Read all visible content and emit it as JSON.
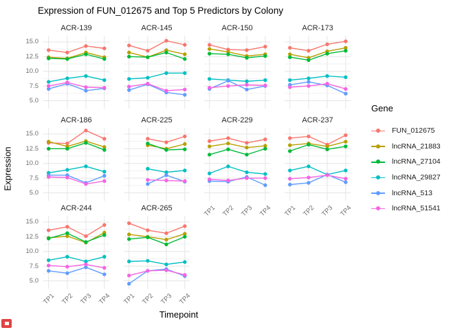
{
  "page": {
    "title": "Expression of FUN_012675 and Top 5 Predictors by Colony"
  },
  "x_axis": {
    "title": "Timepoint",
    "tick_labels": [
      "TP1",
      "TP2",
      "TP3",
      "TP4"
    ]
  },
  "y_axis": {
    "title": "Expression",
    "tick_labels": [
      "15.0",
      "12.5",
      "10.0",
      "7.5",
      "5.0"
    ],
    "tick_values": [
      15,
      12.5,
      10,
      7.5,
      5
    ]
  },
  "legend": {
    "title": "Gene",
    "entries": [
      {
        "label": "FUN_012675",
        "color": "#F8766D"
      },
      {
        "label": "lncRNA_21883",
        "color": "#B79F00"
      },
      {
        "label": "lncRNA_27104",
        "color": "#00BA38"
      },
      {
        "label": "lncRNA_29827",
        "color": "#00BFC4"
      },
      {
        "label": "lncRNA_513",
        "color": "#619CFF"
      },
      {
        "label": "lncRNA_51541",
        "color": "#F564E3"
      }
    ]
  },
  "chart_data": {
    "type": "line",
    "title": "Expression of FUN_012675 and Top 5 Predictors by Colony",
    "xlabel": "Timepoint",
    "ylabel": "Expression",
    "x_categories": [
      "TP1",
      "TP2",
      "TP3",
      "TP4"
    ],
    "ylim": [
      3.65,
      16.05
    ],
    "y_ticks": [
      5,
      7.5,
      10,
      12.5,
      15
    ],
    "y_minor_ticks": [
      6.25,
      8.75,
      11.25,
      13.75
    ],
    "grid": true,
    "legend_position": "right",
    "series_names": [
      "FUN_012675",
      "lncRNA_21883",
      "lncRNA_27104",
      "lncRNA_29827",
      "lncRNA_513",
      "lncRNA_51541"
    ],
    "series_colors": {
      "FUN_012675": "#F8766D",
      "lncRNA_21883": "#B79F00",
      "lncRNA_27104": "#00BA38",
      "lncRNA_29827": "#00BFC4",
      "lncRNA_513": "#619CFF",
      "lncRNA_51541": "#F564E3"
    },
    "facets": [
      {
        "name": "ACR-139",
        "series": {
          "FUN_012675": [
            13.6,
            13.2,
            14.3,
            13.9
          ],
          "lncRNA_21883": [
            12.4,
            12.2,
            13.2,
            12.4
          ],
          "lncRNA_27104": [
            12.2,
            12.1,
            12.9,
            12.1
          ],
          "lncRNA_29827": [
            8.2,
            8.8,
            9.2,
            8.5
          ],
          "lncRNA_513": [
            7.0,
            7.9,
            6.7,
            7.1
          ],
          "lncRNA_51541": [
            7.5,
            8.1,
            7.3,
            7.2
          ]
        }
      },
      {
        "name": "ACR-145",
        "series": {
          "FUN_012675": [
            14.4,
            13.5,
            15.2,
            14.5
          ],
          "lncRNA_21883": [
            13.2,
            12.4,
            13.6,
            12.9
          ],
          "lncRNA_27104": [
            12.5,
            12.4,
            13.2,
            12.1
          ],
          "lncRNA_29827": [
            8.7,
            8.9,
            9.7,
            9.7
          ],
          "lncRNA_513": [
            6.8,
            7.8,
            6.4,
            6.0
          ],
          "lncRNA_51541": [
            7.4,
            7.9,
            6.7,
            6.9
          ]
        }
      },
      {
        "name": "ACR-150",
        "series": {
          "FUN_012675": [
            14.5,
            13.7,
            13.6,
            14.2
          ],
          "lncRNA_21883": [
            13.8,
            13.3,
            12.6,
            12.9
          ],
          "lncRNA_27104": [
            13.0,
            12.9,
            12.3,
            12.6
          ],
          "lncRNA_29827": [
            8.7,
            8.5,
            8.3,
            8.5
          ],
          "lncRNA_513": [
            7.0,
            8.4,
            6.9,
            7.5
          ],
          "lncRNA_51541": [
            7.2,
            7.5,
            7.7,
            7.6
          ]
        }
      },
      {
        "name": "ACR-173",
        "series": {
          "FUN_012675": [
            14.0,
            13.5,
            14.6,
            15.1
          ],
          "lncRNA_21883": [
            12.9,
            12.3,
            13.4,
            14.0
          ],
          "lncRNA_27104": [
            12.4,
            11.9,
            13.0,
            13.5
          ],
          "lncRNA_29827": [
            8.5,
            8.8,
            9.2,
            9.0
          ],
          "lncRNA_513": [
            7.7,
            8.2,
            7.6,
            6.2
          ],
          "lncRNA_51541": [
            7.3,
            7.5,
            7.9,
            7.0
          ]
        }
      },
      {
        "name": "ACR-186",
        "series": {
          "FUN_012675": [
            13.5,
            13.4,
            15.6,
            14.2
          ],
          "lncRNA_21883": [
            13.7,
            12.9,
            13.8,
            12.8
          ],
          "lncRNA_27104": [
            12.5,
            12.5,
            13.5,
            12.3
          ],
          "lncRNA_29827": [
            8.4,
            8.9,
            9.5,
            8.6
          ],
          "lncRNA_513": [
            8.0,
            8.0,
            6.7,
            7.9
          ],
          "lncRNA_51541": [
            7.7,
            7.6,
            6.5,
            7.0
          ]
        }
      },
      {
        "name": "ACR-225",
        "series": {
          "FUN_012675": [
            null,
            14.2,
            13.6,
            14.6
          ],
          "lncRNA_21883": [
            null,
            13.1,
            12.5,
            13.3
          ],
          "lncRNA_27104": [
            null,
            13.4,
            12.3,
            12.4
          ],
          "lncRNA_29827": [
            null,
            9.1,
            8.5,
            8.8
          ],
          "lncRNA_513": [
            null,
            6.5,
            8.0,
            6.9
          ],
          "lncRNA_51541": [
            null,
            7.2,
            7.1,
            7.0
          ]
        }
      },
      {
        "name": "ACR-229",
        "series": {
          "FUN_012675": [
            13.8,
            14.3,
            13.5,
            14.1
          ],
          "lncRNA_21883": [
            12.9,
            13.4,
            12.7,
            13.0
          ],
          "lncRNA_27104": [
            11.5,
            12.4,
            11.5,
            12.5
          ],
          "lncRNA_29827": [
            8.3,
            9.5,
            8.5,
            8.2
          ],
          "lncRNA_513": [
            7.0,
            6.9,
            7.7,
            6.3
          ],
          "lncRNA_51541": [
            7.3,
            7.1,
            7.5,
            7.5
          ]
        }
      },
      {
        "name": "ACR-237",
        "series": {
          "FUN_012675": [
            14.3,
            14.6,
            13.2,
            14.8
          ],
          "lncRNA_21883": [
            13.1,
            13.4,
            12.9,
            13.7
          ],
          "lncRNA_27104": [
            12.1,
            13.2,
            12.4,
            12.9
          ],
          "lncRNA_29827": [
            8.8,
            9.5,
            8.1,
            8.8
          ],
          "lncRNA_513": [
            6.4,
            6.7,
            8.1,
            6.8
          ],
          "lncRNA_51541": [
            7.4,
            7.6,
            8.0,
            7.4
          ]
        }
      },
      {
        "name": "ACR-244",
        "series": {
          "FUN_012675": [
            13.6,
            14.2,
            12.6,
            14.5
          ],
          "lncRNA_21883": [
            12.3,
            12.6,
            11.5,
            13.2
          ],
          "lncRNA_27104": [
            12.2,
            13.1,
            11.6,
            12.8
          ],
          "lncRNA_29827": [
            8.5,
            9.1,
            8.3,
            9.1
          ],
          "lncRNA_513": [
            6.7,
            6.3,
            7.3,
            6.1
          ],
          "lncRNA_51541": [
            7.6,
            7.4,
            7.8,
            7.2
          ]
        }
      },
      {
        "name": "ACR-265",
        "series": {
          "FUN_012675": [
            14.8,
            13.6,
            13.1,
            14.3
          ],
          "lncRNA_21883": [
            12.9,
            12.5,
            12.0,
            13.0
          ],
          "lncRNA_27104": [
            12.1,
            12.4,
            11.2,
            12.5
          ],
          "lncRNA_29827": [
            8.3,
            8.4,
            7.8,
            8.2
          ],
          "lncRNA_513": [
            4.5,
            6.7,
            7.0,
            5.8
          ],
          "lncRNA_51541": [
            5.9,
            6.7,
            6.8,
            6.0
          ]
        }
      }
    ]
  }
}
